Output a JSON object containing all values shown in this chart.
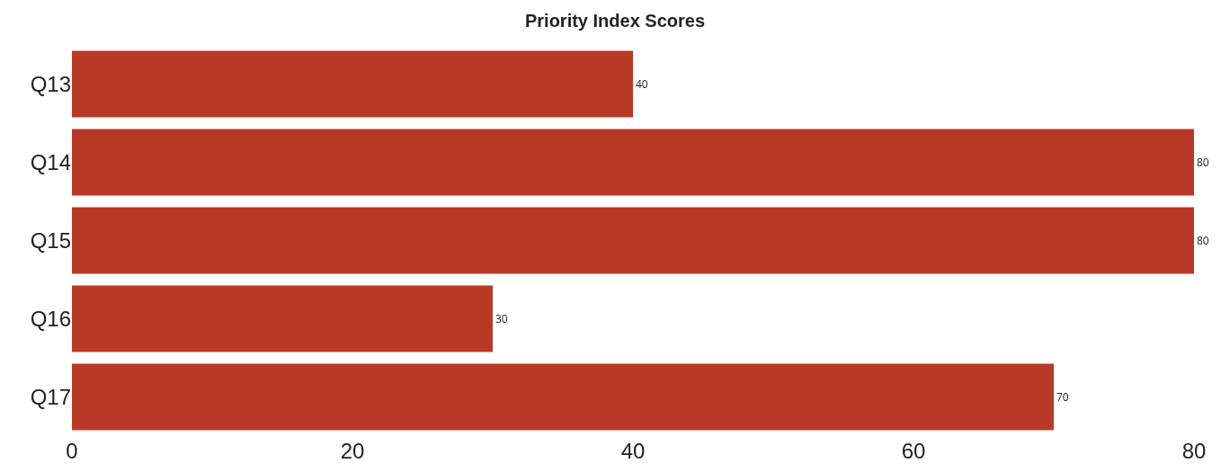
{
  "chart_data": {
    "type": "bar",
    "orientation": "horizontal",
    "title": "Priority Index Scores",
    "categories": [
      "Q13",
      "Q14",
      "Q15",
      "Q16",
      "Q17"
    ],
    "values": [
      40,
      80,
      80,
      30,
      70
    ],
    "color": "#b83a26",
    "xlim": [
      0,
      80
    ],
    "xticks": [
      0,
      20,
      40,
      60,
      80
    ],
    "data_labels": true
  }
}
